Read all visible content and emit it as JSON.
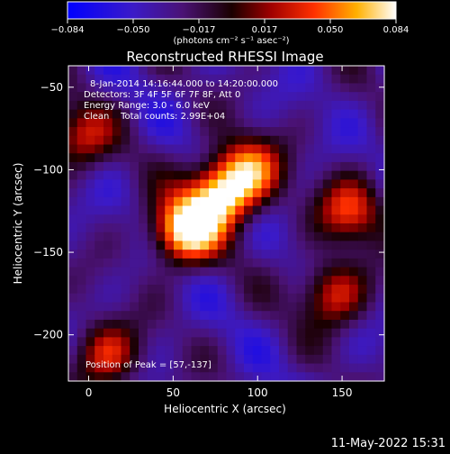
{
  "colorbar": {
    "ticks": [
      "−0.084",
      "−0.050",
      "−0.017",
      "0.017",
      "0.050",
      "0.084"
    ],
    "unit_label": "(photons cm⁻² s⁻¹ asec⁻²)"
  },
  "title": "Reconstructed RHESSI Image",
  "info_lines": [
    "8-Jan-2014 14:16:44.000 to 14:20:00.000",
    "Detectors: 3F 4F 5F 6F 7F 8F, Att 0",
    "Energy Range: 3.0 - 6.0 keV",
    "Clean    Total counts: 2.99E+04"
  ],
  "peak_label": "Position of Peak = [57,-137]",
  "footer_timestamp": "11-May-2022 15:31",
  "chart_data": {
    "type": "heatmap",
    "title": "Reconstructed RHESSI Image",
    "xlabel": "Heliocentric X (arcsec)",
    "ylabel": "Heliocentric Y (arcsec)",
    "xlim": [
      -12,
      175
    ],
    "ylim": [
      -228,
      -37
    ],
    "xticks": [
      0,
      50,
      100,
      150
    ],
    "yticks": [
      -200,
      -150,
      -100,
      -50
    ],
    "colorbar_range": [
      -0.084,
      0.084
    ],
    "colormap": "blue-purple-red-yellow-white",
    "peak": [
      57,
      -137
    ],
    "grid": false,
    "grid_nx": 36,
    "grid_ny": 36,
    "hotspots": [
      {
        "x": 57,
        "y": -137,
        "value": 0.084
      },
      {
        "x": 78,
        "y": -115,
        "value": 0.07
      },
      {
        "x": 95,
        "y": -100,
        "value": 0.04
      },
      {
        "x": 155,
        "y": -125,
        "value": 0.03
      },
      {
        "x": 145,
        "y": -175,
        "value": 0.03
      },
      {
        "x": 10,
        "y": -212,
        "value": 0.03
      },
      {
        "x": -5,
        "y": -80,
        "value": 0.02
      }
    ]
  }
}
